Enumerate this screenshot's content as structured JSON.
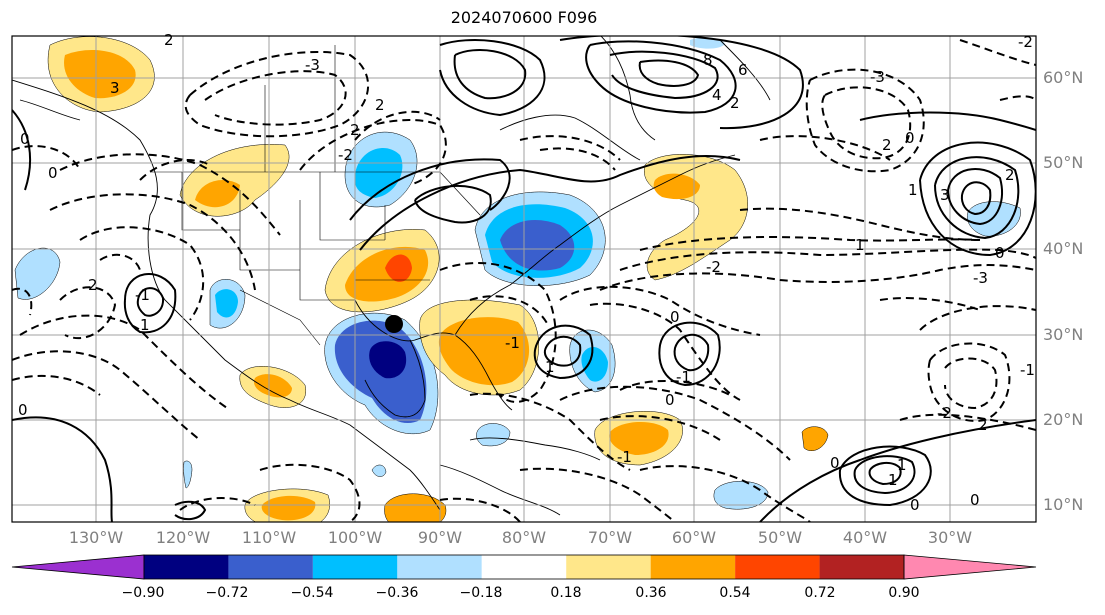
{
  "title": "2024070600 F096",
  "map": {
    "lat_labels": [
      "60°N",
      "50°N",
      "40°N",
      "30°N",
      "20°N",
      "10°N"
    ],
    "lon_labels": [
      "130°W",
      "120°W",
      "110°W",
      "100°W",
      "90°W",
      "80°W",
      "70°W",
      "60°W",
      "50°W",
      "40°W",
      "30°W"
    ],
    "contour_labels": [
      "2",
      "3",
      "-3",
      "2",
      "2",
      "-2",
      "0",
      "6",
      "8",
      "4",
      "2",
      "-3",
      "0",
      "1",
      "2",
      "-2",
      "0",
      "1",
      "-3",
      "3",
      "2",
      "0",
      "-1",
      "1",
      "2",
      "0",
      "0",
      "-1",
      "1",
      "-1",
      "-1",
      "0",
      "-2",
      "1",
      "0",
      "-2",
      "2",
      "1",
      "-1",
      "0",
      "0"
    ]
  },
  "colorbar": {
    "ticks": [
      "−0.90",
      "−0.72",
      "−0.54",
      "−0.36",
      "−0.18",
      "0.18",
      "0.36",
      "0.54",
      "0.72",
      "0.90"
    ],
    "colors": [
      "#9b30d0",
      "#000080",
      "#3a5fcd",
      "#00bfff",
      "#b0e0ff",
      "#ffffff",
      "#ffe78a",
      "#ffa500",
      "#ff4500",
      "#b22222",
      "#ff88b0"
    ]
  }
}
